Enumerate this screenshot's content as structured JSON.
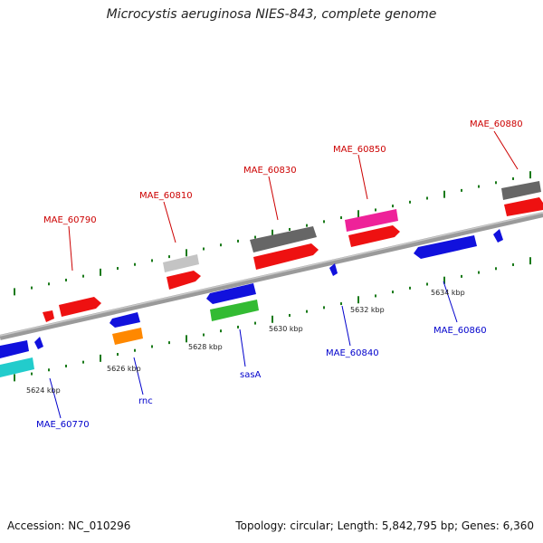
{
  "header": {
    "title": "Microcystis aeruginosa NIES-843, complete genome"
  },
  "footer": {
    "accession": "Accession: NC_010296",
    "summary": "Topology: circular; Length: 5,842,795 bp; Genes: 6,360"
  },
  "colors": {
    "forward_label": "#cc0000",
    "reverse_label": "#0000cc",
    "backbone": "#808080",
    "tick": "#1a7a1a"
  },
  "scale_labels": [
    "5624 kbp",
    "5626 kbp",
    "5628 kbp",
    "5630 kbp",
    "5632 kbp",
    "5634 kbp"
  ],
  "forward_genes": [
    "MAE_60790",
    "MAE_60810",
    "MAE_60830",
    "MAE_60850",
    "MAE_60880"
  ],
  "reverse_genes": [
    "MAE_60770",
    "rnc",
    "sasA",
    "MAE_60840",
    "MAE_60860"
  ]
}
